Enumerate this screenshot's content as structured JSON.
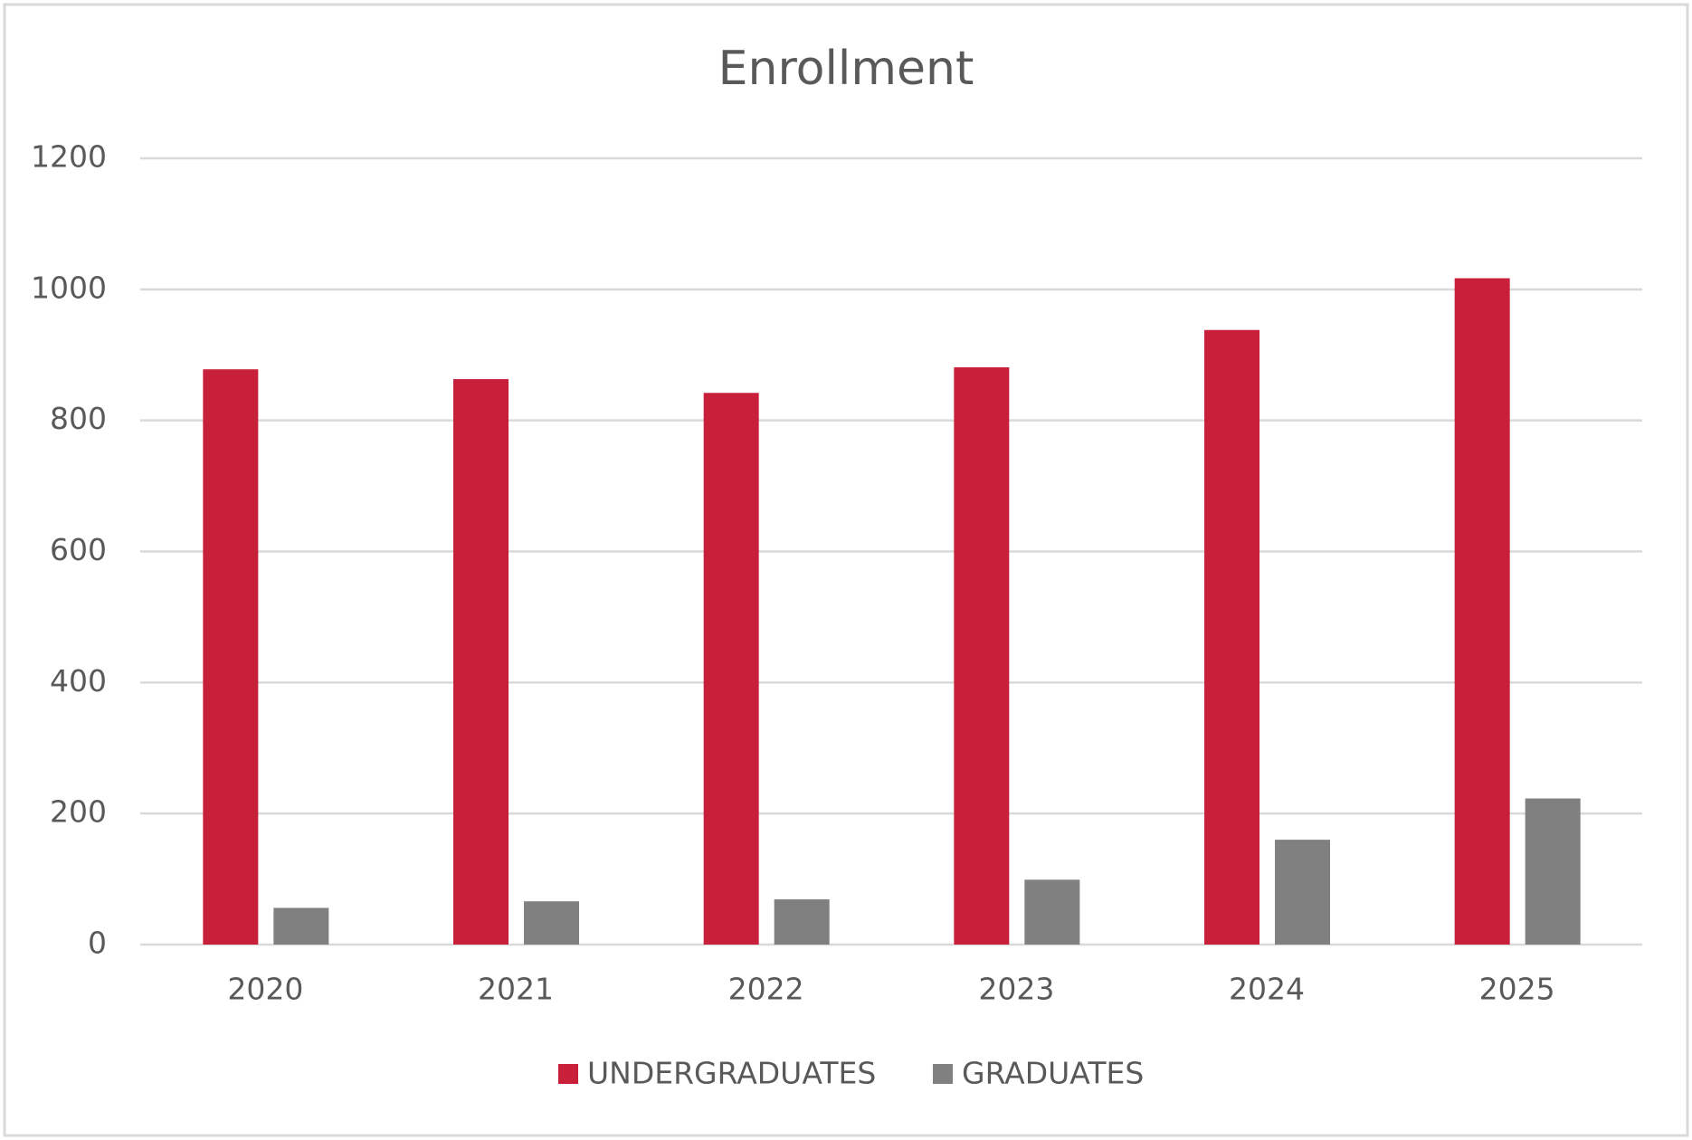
{
  "chart_data": {
    "type": "bar",
    "title": "Enrollment",
    "categories": [
      "2020",
      "2021",
      "2022",
      "2023",
      "2024",
      "2025"
    ],
    "series": [
      {
        "name": "UNDERGRADUATES",
        "color": "#c8203a",
        "values": [
          878,
          863,
          842,
          881,
          938,
          1017
        ]
      },
      {
        "name": "GRADUATES",
        "color": "#808080",
        "values": [
          56,
          66,
          69,
          99,
          160,
          223
        ]
      }
    ],
    "ylim": [
      0,
      1200
    ],
    "yticks": [
      0,
      200,
      400,
      600,
      800,
      1000,
      1200
    ],
    "grid": true,
    "legend": "bottom"
  }
}
